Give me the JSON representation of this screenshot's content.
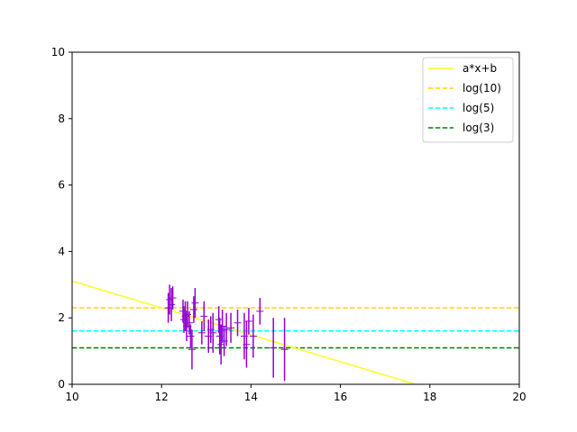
{
  "chart_data": {
    "type": "scatter",
    "xlim": [
      10,
      20
    ],
    "ylim": [
      0,
      10
    ],
    "xticks": [
      10,
      12,
      14,
      16,
      18,
      20
    ],
    "yticks": [
      0,
      2,
      4,
      6,
      8,
      10
    ],
    "grid": false,
    "legend_position": "top-right",
    "lines": [
      {
        "name": "a*x+b",
        "kind": "linear",
        "slope": -0.405,
        "intercept": 7.16,
        "style": "solid",
        "color": "#ffff22"
      },
      {
        "name": "log(10)",
        "kind": "horizontal",
        "y": 2.3026,
        "style": "dashed",
        "color": "#ffd700"
      },
      {
        "name": "log(5)",
        "kind": "horizontal",
        "y": 1.6094,
        "style": "dashed",
        "color": "#00ffff"
      },
      {
        "name": "log(3)",
        "kind": "horizontal",
        "y": 1.0986,
        "style": "dashed",
        "color": "#008000"
      }
    ],
    "errorbar_color": "#9400d3",
    "points": [
      {
        "x": 12.15,
        "y": 2.3,
        "err": 0.45
      },
      {
        "x": 12.18,
        "y": 2.55,
        "err": 0.45
      },
      {
        "x": 12.22,
        "y": 2.4,
        "err": 0.5
      },
      {
        "x": 12.25,
        "y": 2.6,
        "err": 0.35
      },
      {
        "x": 12.48,
        "y": 2.2,
        "err": 0.35
      },
      {
        "x": 12.5,
        "y": 1.95,
        "err": 0.4
      },
      {
        "x": 12.53,
        "y": 2.05,
        "err": 0.45
      },
      {
        "x": 12.56,
        "y": 1.75,
        "err": 0.45
      },
      {
        "x": 12.58,
        "y": 2.1,
        "err": 0.4
      },
      {
        "x": 12.62,
        "y": 1.85,
        "err": 0.35
      },
      {
        "x": 12.65,
        "y": 1.45,
        "err": 0.35
      },
      {
        "x": 12.68,
        "y": 1.05,
        "err": 0.6
      },
      {
        "x": 12.72,
        "y": 2.25,
        "err": 0.4
      },
      {
        "x": 12.75,
        "y": 2.45,
        "err": 0.45
      },
      {
        "x": 12.9,
        "y": 1.55,
        "err": 0.35
      },
      {
        "x": 12.95,
        "y": 2.05,
        "err": 0.45
      },
      {
        "x": 13.05,
        "y": 1.45,
        "err": 0.5
      },
      {
        "x": 13.1,
        "y": 1.65,
        "err": 0.4
      },
      {
        "x": 13.15,
        "y": 1.55,
        "err": 0.6
      },
      {
        "x": 13.28,
        "y": 1.95,
        "err": 0.4
      },
      {
        "x": 13.3,
        "y": 1.45,
        "err": 0.55
      },
      {
        "x": 13.33,
        "y": 1.2,
        "err": 0.6
      },
      {
        "x": 13.36,
        "y": 1.75,
        "err": 0.5
      },
      {
        "x": 13.4,
        "y": 1.3,
        "err": 0.45
      },
      {
        "x": 13.45,
        "y": 1.65,
        "err": 0.5
      },
      {
        "x": 13.55,
        "y": 1.7,
        "err": 0.45
      },
      {
        "x": 13.7,
        "y": 1.85,
        "err": 0.4
      },
      {
        "x": 13.85,
        "y": 1.45,
        "err": 0.7
      },
      {
        "x": 13.9,
        "y": 1.2,
        "err": 0.7
      },
      {
        "x": 13.95,
        "y": 1.9,
        "err": 0.4
      },
      {
        "x": 14.05,
        "y": 1.45,
        "err": 0.65
      },
      {
        "x": 14.2,
        "y": 2.2,
        "err": 0.4
      },
      {
        "x": 14.5,
        "y": 1.1,
        "err": 0.9
      },
      {
        "x": 14.75,
        "y": 1.05,
        "err": 0.95
      }
    ]
  }
}
